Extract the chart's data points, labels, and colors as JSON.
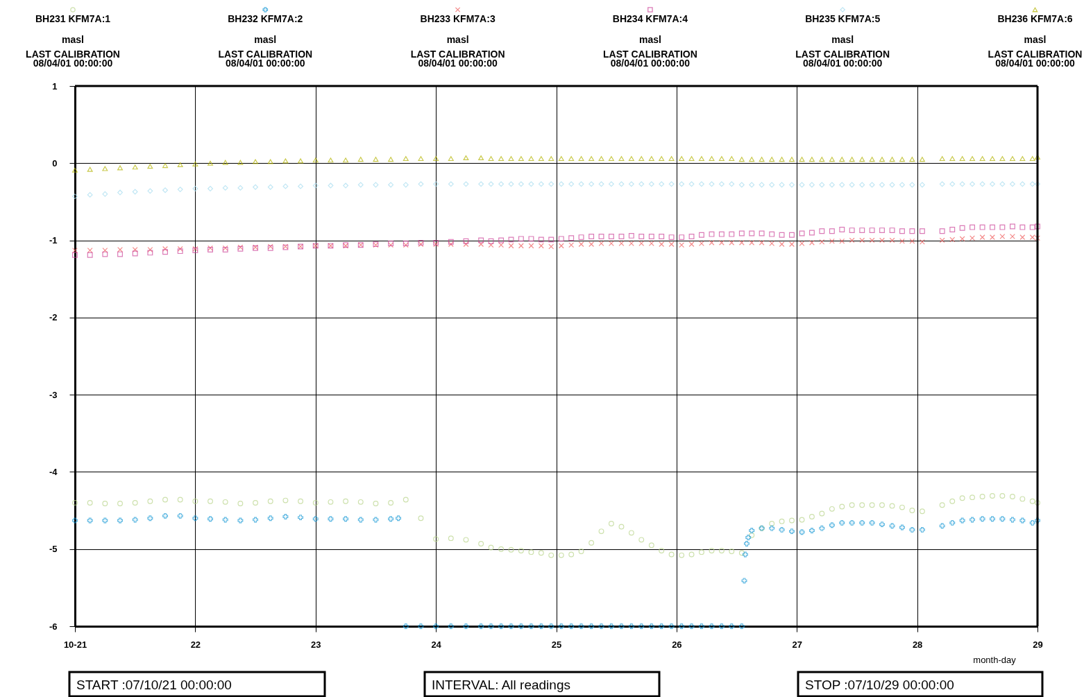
{
  "chart_data": {
    "type": "scatter",
    "xlabel": "month-day",
    "legend": "top",
    "grid": true,
    "xlim": [
      21,
      29
    ],
    "ylim": [
      -6,
      1
    ],
    "xticks": [
      {
        "value": 21,
        "label": "10-21"
      },
      22,
      23,
      24,
      25,
      26,
      27,
      28,
      29
    ],
    "yticks": [
      -6,
      -5,
      -4,
      -3,
      -2,
      -1,
      0,
      1
    ],
    "x": [
      21.0,
      21.125,
      21.25,
      21.375,
      21.5,
      21.625,
      21.75,
      21.875,
      22.0,
      22.125,
      22.25,
      22.375,
      22.5,
      22.625,
      22.75,
      22.875,
      23.0,
      23.125,
      23.25,
      23.375,
      23.5,
      23.625,
      23.75,
      23.875,
      24.0,
      24.125,
      24.25,
      24.375,
      24.458,
      24.542,
      24.625,
      24.708,
      24.792,
      24.875,
      24.958,
      25.042,
      25.125,
      25.208,
      25.292,
      25.375,
      25.458,
      25.542,
      25.625,
      25.708,
      25.792,
      25.875,
      25.958,
      26.042,
      26.125,
      26.208,
      26.292,
      26.375,
      26.458,
      26.542,
      26.625,
      26.708,
      26.792,
      26.875,
      26.958,
      27.042,
      27.125,
      27.208,
      27.292,
      27.375,
      27.458,
      27.542,
      27.625,
      27.708,
      27.792,
      27.875,
      27.958,
      28.042,
      28.125,
      28.208,
      28.292,
      28.375,
      28.458,
      28.542,
      28.625,
      28.708,
      28.792,
      28.875,
      28.958,
      29.0
    ],
    "annotations": [
      "masl",
      "LAST CALIBRATION",
      "08/04/01 00:00:00",
      "masl",
      "LAST CALIBRATION",
      "08/04/01 00:00:00",
      "masl",
      "LAST CALIBRATION",
      "08/04/01 00:00:00",
      "masl",
      "LAST CALIBRATION",
      "08/04/01 00:00:00",
      "masl",
      "LAST CALIBRATION",
      "08/04/01 00:00:00",
      "masl",
      "LAST CALIBRATION",
      "08/04/01 00:00:00",
      "START :07/10/21 00:00:00",
      "INTERVAL: All readings",
      "STOP :07/10/29 00:00:00"
    ],
    "series": [
      {
        "name": "BH231 KFM7A:1",
        "color": "#b8d48a",
        "marker": "circle",
        "values": [
          -4.4,
          -4.4,
          -4.41,
          -4.41,
          -4.4,
          -4.38,
          -4.36,
          -4.36,
          -4.38,
          -4.38,
          -4.39,
          -4.41,
          -4.4,
          -4.38,
          -4.37,
          -4.38,
          -4.4,
          -4.39,
          -4.38,
          -4.39,
          -4.41,
          -4.4,
          -4.36,
          -4.6,
          -4.87,
          -4.86,
          -4.88,
          -4.93,
          -4.98,
          -5.0,
          -5.01,
          -5.02,
          -5.04,
          -5.05,
          -5.08,
          -5.08,
          -5.07,
          -5.03,
          -4.92,
          -4.77,
          -4.67,
          -4.71,
          -4.79,
          -4.88,
          -4.95,
          -5.02,
          -5.07,
          -5.08,
          -5.07,
          -5.04,
          -5.02,
          -5.02,
          -5.03,
          -5.05,
          -4.82,
          -4.73,
          -4.67,
          -4.64,
          -4.63,
          -4.62,
          -4.58,
          -4.54,
          -4.48,
          -4.45,
          -4.43,
          -4.43,
          -4.43,
          -4.43,
          -4.44,
          -4.46,
          -4.5,
          -4.51,
          null,
          -4.43,
          -4.38,
          -4.34,
          -4.33,
          -4.32,
          -4.31,
          -4.31,
          -4.32,
          -4.35,
          -4.38,
          -4.4
        ]
      },
      {
        "name": "BH232 KFM7A:2",
        "color": "#1a9ad6",
        "marker": "cross",
        "x": [
          21.0,
          21.125,
          21.25,
          21.375,
          21.5,
          21.625,
          21.75,
          21.875,
          22.0,
          22.125,
          22.25,
          22.375,
          22.5,
          22.625,
          22.75,
          22.875,
          23.0,
          23.125,
          23.25,
          23.375,
          23.5,
          23.625,
          23.688,
          23.75,
          23.875,
          24.0,
          24.125,
          24.25,
          24.375,
          24.458,
          24.542,
          24.625,
          24.708,
          24.792,
          24.875,
          24.958,
          25.042,
          25.125,
          25.208,
          25.292,
          25.375,
          25.458,
          25.542,
          25.625,
          25.708,
          25.792,
          25.875,
          25.958,
          26.042,
          26.125,
          26.208,
          26.292,
          26.375,
          26.458,
          26.542,
          26.563,
          26.571,
          26.583,
          26.596,
          26.625,
          26.708,
          26.792,
          26.875,
          26.958,
          27.042,
          27.125,
          27.208,
          27.292,
          27.375,
          27.458,
          27.542,
          27.625,
          27.708,
          27.792,
          27.875,
          27.958,
          28.042,
          28.208,
          28.292,
          28.375,
          28.458,
          28.542,
          28.625,
          28.708,
          28.792,
          28.875,
          28.958,
          29.0
        ],
        "values": [
          -4.63,
          -4.63,
          -4.63,
          -4.63,
          -4.62,
          -4.6,
          -4.57,
          -4.57,
          -4.6,
          -4.61,
          -4.62,
          -4.63,
          -4.62,
          -4.6,
          -4.58,
          -4.59,
          -4.61,
          -4.61,
          -4.61,
          -4.62,
          -4.62,
          -4.61,
          -4.6,
          -6,
          -6,
          -6,
          -6,
          -6,
          -6,
          -6,
          -6,
          -6,
          -6,
          -6,
          -6,
          -6,
          -6,
          -6,
          -6,
          -6,
          -6,
          -6,
          -6,
          -6,
          -6,
          -6,
          -6,
          -6,
          -6,
          -6,
          -6,
          -6,
          -6,
          -6,
          -6,
          -5.41,
          -5.07,
          -4.93,
          -4.85,
          -4.76,
          -4.73,
          -4.73,
          -4.75,
          -4.77,
          -4.78,
          -4.76,
          -4.73,
          -4.69,
          -4.66,
          -4.66,
          -4.66,
          -4.66,
          -4.68,
          -4.7,
          -4.72,
          -4.75,
          -4.75,
          -4.7,
          -4.66,
          -4.63,
          -4.62,
          -4.61,
          -4.61,
          -4.61,
          -4.62,
          -4.63,
          -4.66,
          -4.63
        ]
      },
      {
        "name": "BH233 KFM7A:3",
        "color": "#ef5a5a",
        "marker": "x",
        "values": [
          -1.13,
          -1.13,
          -1.13,
          -1.12,
          -1.12,
          -1.12,
          -1.11,
          -1.11,
          -1.11,
          -1.1,
          -1.1,
          -1.09,
          -1.09,
          -1.08,
          -1.08,
          -1.08,
          -1.07,
          -1.07,
          -1.07,
          -1.06,
          -1.06,
          -1.06,
          -1.06,
          -1.05,
          -1.05,
          -1.05,
          -1.05,
          -1.05,
          -1.06,
          -1.06,
          -1.07,
          -1.07,
          -1.07,
          -1.07,
          -1.08,
          -1.07,
          -1.06,
          -1.05,
          -1.05,
          -1.04,
          -1.04,
          -1.04,
          -1.04,
          -1.04,
          -1.04,
          -1.05,
          -1.05,
          -1.06,
          -1.05,
          -1.04,
          -1.03,
          -1.03,
          -1.03,
          -1.03,
          -1.03,
          -1.03,
          -1.04,
          -1.05,
          -1.05,
          -1.04,
          -1.03,
          -1.02,
          -1.01,
          -1.01,
          -1.0,
          -1.0,
          -1.0,
          -1.0,
          -1.0,
          -1.01,
          -1.01,
          -1.02,
          null,
          -1.0,
          -0.99,
          -0.98,
          -0.97,
          -0.96,
          -0.96,
          -0.95,
          -0.95,
          -0.96,
          -0.96,
          -0.97
        ]
      },
      {
        "name": "BH234 KFM7A:4",
        "color": "#cc4499",
        "marker": "square",
        "values": [
          -1.19,
          -1.19,
          -1.18,
          -1.18,
          -1.17,
          -1.16,
          -1.15,
          -1.14,
          -1.13,
          -1.12,
          -1.12,
          -1.11,
          -1.1,
          -1.1,
          -1.09,
          -1.08,
          -1.07,
          -1.07,
          -1.06,
          -1.06,
          -1.05,
          -1.04,
          -1.04,
          -1.03,
          -1.03,
          -1.02,
          -1.01,
          -1.0,
          -1.01,
          -1.0,
          -0.99,
          -0.98,
          -0.98,
          -0.99,
          -0.99,
          -0.98,
          -0.97,
          -0.96,
          -0.95,
          -0.95,
          -0.95,
          -0.95,
          -0.94,
          -0.95,
          -0.95,
          -0.95,
          -0.96,
          -0.96,
          -0.95,
          -0.93,
          -0.92,
          -0.92,
          -0.92,
          -0.91,
          -0.91,
          -0.91,
          -0.92,
          -0.93,
          -0.93,
          -0.91,
          -0.9,
          -0.88,
          -0.88,
          -0.86,
          -0.87,
          -0.87,
          -0.87,
          -0.87,
          -0.87,
          -0.88,
          -0.88,
          -0.88,
          null,
          -0.88,
          -0.86,
          -0.84,
          -0.83,
          -0.83,
          -0.83,
          -0.83,
          -0.82,
          -0.83,
          -0.83,
          -0.82
        ]
      },
      {
        "name": "BH235 KFM7A:5",
        "color": "#a6dcef",
        "marker": "diamond",
        "values": [
          -0.43,
          -0.41,
          -0.4,
          -0.38,
          -0.37,
          -0.36,
          -0.35,
          -0.34,
          -0.33,
          -0.33,
          -0.32,
          -0.32,
          -0.31,
          -0.31,
          -0.3,
          -0.3,
          -0.29,
          -0.29,
          -0.29,
          -0.28,
          -0.28,
          -0.28,
          -0.28,
          -0.27,
          -0.27,
          -0.27,
          -0.27,
          -0.27,
          -0.27,
          -0.27,
          -0.27,
          -0.27,
          -0.27,
          -0.27,
          -0.27,
          -0.27,
          -0.27,
          -0.27,
          -0.27,
          -0.27,
          -0.27,
          -0.27,
          -0.27,
          -0.27,
          -0.27,
          -0.27,
          -0.27,
          -0.27,
          -0.27,
          -0.27,
          -0.27,
          -0.27,
          -0.27,
          -0.28,
          -0.28,
          -0.28,
          -0.28,
          -0.28,
          -0.28,
          -0.28,
          -0.28,
          -0.28,
          -0.28,
          -0.28,
          -0.28,
          -0.28,
          -0.28,
          -0.28,
          -0.28,
          -0.28,
          -0.28,
          -0.28,
          null,
          -0.27,
          -0.27,
          -0.27,
          -0.27,
          -0.27,
          -0.27,
          -0.27,
          -0.27,
          -0.27,
          -0.27,
          -0.27
        ]
      },
      {
        "name": "BH236 KFM7A:6",
        "color": "#b3b300",
        "marker": "triangle",
        "values": [
          -0.09,
          -0.08,
          -0.07,
          -0.06,
          -0.05,
          -0.04,
          -0.03,
          -0.02,
          -0.01,
          0.0,
          0.01,
          0.01,
          0.02,
          0.02,
          0.03,
          0.03,
          0.04,
          0.04,
          0.04,
          0.05,
          0.05,
          0.05,
          0.06,
          0.06,
          0.06,
          0.06,
          0.07,
          0.07,
          0.06,
          0.06,
          0.06,
          0.06,
          0.06,
          0.06,
          0.06,
          0.06,
          0.06,
          0.06,
          0.06,
          0.06,
          0.06,
          0.06,
          0.06,
          0.06,
          0.06,
          0.06,
          0.06,
          0.06,
          0.06,
          0.06,
          0.06,
          0.06,
          0.06,
          0.05,
          0.05,
          0.05,
          0.05,
          0.05,
          0.05,
          0.05,
          0.05,
          0.05,
          0.05,
          0.05,
          0.05,
          0.05,
          0.05,
          0.05,
          0.05,
          0.05,
          0.05,
          0.05,
          null,
          0.06,
          0.06,
          0.06,
          0.06,
          0.06,
          0.06,
          0.06,
          0.06,
          0.06,
          0.06,
          0.08
        ]
      }
    ]
  }
}
